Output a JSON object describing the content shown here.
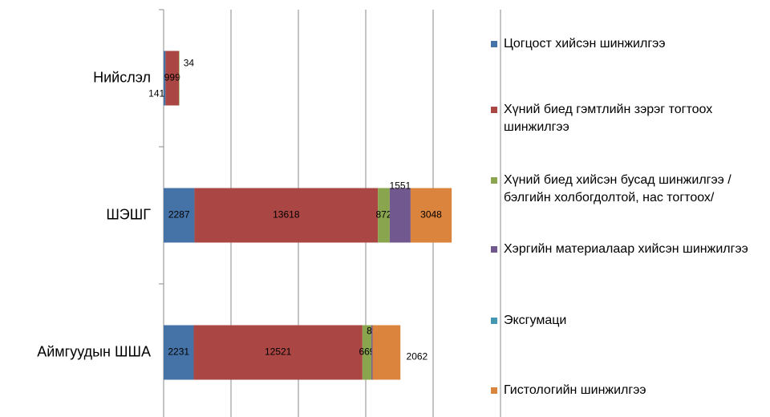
{
  "chart_data": {
    "type": "stacked-barh",
    "categories": [
      "Нийслэл",
      "ШЭШГ",
      "Аймгуудын ШША"
    ],
    "series": [
      {
        "name": "Цогцост хийсэн шинжилгээ",
        "color": "#4572a7",
        "values": [
          141,
          2287,
          2231
        ]
      },
      {
        "name": "Хүний биед гэмтлийн зэрэг тогтоох шинжилгээ",
        "color": "#aa4643",
        "values": [
          999,
          13618,
          12521
        ]
      },
      {
        "name": "Хүний биед хийсэн бусад шинжилгээ /бэлгийн холбогдолтой, нас тогтоох/",
        "color": "#89a54e",
        "values": [
          34,
          872,
          669
        ]
      },
      {
        "name": "Хэргийн материалаар хийсэн шинжилгээ",
        "color": "#71588f",
        "values": [
          null,
          1551,
          89
        ]
      },
      {
        "name": "Эксгумаци",
        "color": "#4198af",
        "values": [
          null,
          null,
          null
        ]
      },
      {
        "name": "Гистологийн шинжилгээ",
        "color": "#db843d",
        "values": [
          null,
          3048,
          2062
        ]
      }
    ],
    "xlim": [
      0,
      25000
    ],
    "xticks": [
      0,
      5000,
      10000,
      15000,
      20000,
      25000
    ],
    "grid": true
  }
}
